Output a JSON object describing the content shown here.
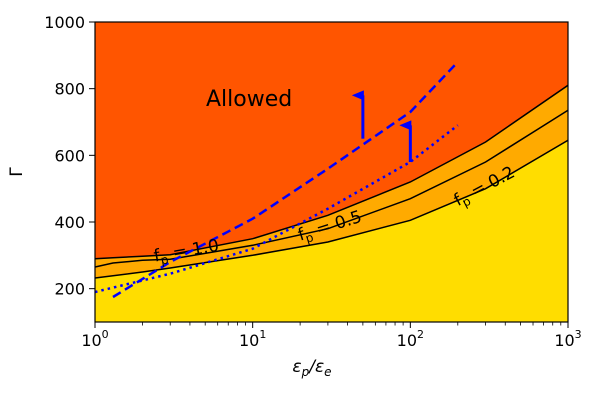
{
  "chart_data": {
    "type": "line",
    "xlabel": "εp/εe",
    "ylabel": "Γ",
    "xscale": "log",
    "xlim": [
      1,
      1000
    ],
    "ylim": [
      100,
      1000
    ],
    "x_ticks": [
      {
        "base": "10",
        "exp": "0"
      },
      {
        "base": "10",
        "exp": "1"
      },
      {
        "base": "10",
        "exp": "2"
      },
      {
        "base": "10",
        "exp": "3"
      }
    ],
    "y_ticks": [
      200,
      400,
      600,
      800,
      1000
    ],
    "regions": [
      {
        "label": "Allowed",
        "color": "#ff5500"
      },
      {
        "label": "",
        "color": "#ffaa00"
      },
      {
        "label": "",
        "color": "#ffdd00"
      }
    ],
    "contours": [
      {
        "label": "f = 1.0",
        "label_main": "f",
        "label_sub": "p",
        "label_rest": " = 1.0",
        "x": [
          1,
          1.3,
          2,
          3,
          10,
          30,
          100,
          300,
          1000
        ],
        "y": [
          290,
          293,
          297,
          302,
          350,
          420,
          520,
          640,
          810
        ]
      },
      {
        "label": "f = 0.5",
        "label_main": "f",
        "label_sub": "p",
        "label_rest": " = 0.5",
        "x": [
          1,
          1.3,
          2,
          3,
          10,
          30,
          100,
          300,
          1000
        ],
        "y": [
          265,
          277,
          285,
          288,
          330,
          380,
          470,
          580,
          735
        ]
      },
      {
        "label": "f = 0.2",
        "label_main": "f",
        "label_sub": "p",
        "label_rest": " = 0.2",
        "x": [
          1,
          2,
          3,
          10,
          30,
          100,
          300,
          1000
        ],
        "y": [
          232,
          250,
          262,
          300,
          340,
          405,
          500,
          645
        ]
      }
    ],
    "dashed_line": {
      "color": "#0000ff",
      "x": [
        1.3,
        3,
        10,
        30,
        100,
        200
      ],
      "y": [
        175,
        280,
        410,
        560,
        730,
        880
      ]
    },
    "dotted_line": {
      "color": "#0000ff",
      "x": [
        1,
        3,
        10,
        30,
        100,
        200
      ],
      "y": [
        190,
        245,
        320,
        440,
        580,
        690
      ]
    },
    "arrows": [
      {
        "x": 50,
        "y_from": 650,
        "y_to": 780,
        "color": "#0000ff"
      },
      {
        "x": 100,
        "y_from": 580,
        "y_to": 690,
        "color": "#0000ff"
      }
    ]
  }
}
